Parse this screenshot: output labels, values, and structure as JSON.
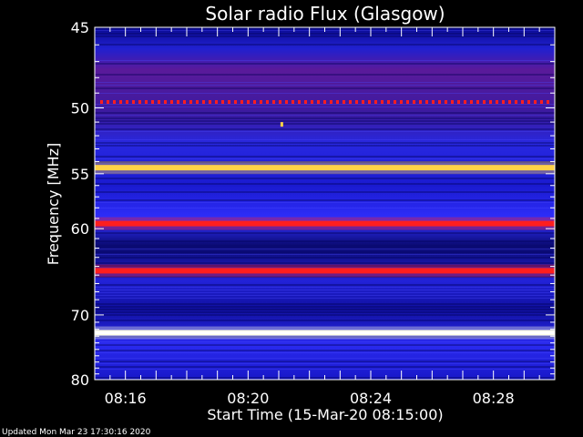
{
  "chart_data": {
    "type": "heatmap",
    "title": "Solar radio Flux (Glasgow)",
    "xlabel": "Start Time (15-Mar-20 08:15:00)",
    "ylabel": "Frequency [MHz]",
    "x_ticks": [
      "08:16",
      "08:20",
      "08:24",
      "08:28"
    ],
    "x_tick_minutes": [
      1,
      5,
      9,
      13
    ],
    "x_range_minutes": [
      0,
      15
    ],
    "y_ticks": [
      45,
      50,
      55,
      60,
      70,
      80
    ],
    "y_range_mhz": [
      45,
      80
    ],
    "y_scale": "reciprocal",
    "grid": false,
    "legend": "none",
    "colormap": [
      "#00001e",
      "#000078",
      "#1414dc",
      "#3c3cff",
      "#8c14a0",
      "#dc0a14",
      "#ff1e1e",
      "#ffd246",
      "#ffffe6"
    ],
    "bands": [
      {
        "mhz": 49.6,
        "level": 0.75,
        "pattern": "dotted"
      },
      {
        "mhz": 54.5,
        "level": 0.82
      },
      {
        "mhz": 59.5,
        "level": 0.78
      },
      {
        "mhz": 64.5,
        "level": 0.74
      },
      {
        "mhz": 72.5,
        "level": 0.98
      }
    ],
    "spots": [
      {
        "minute": 6.1,
        "mhz": 51.2,
        "level": 0.9
      }
    ]
  },
  "footer": {
    "updated": "Updated Mon Mar 23 17:30:16 2020"
  }
}
